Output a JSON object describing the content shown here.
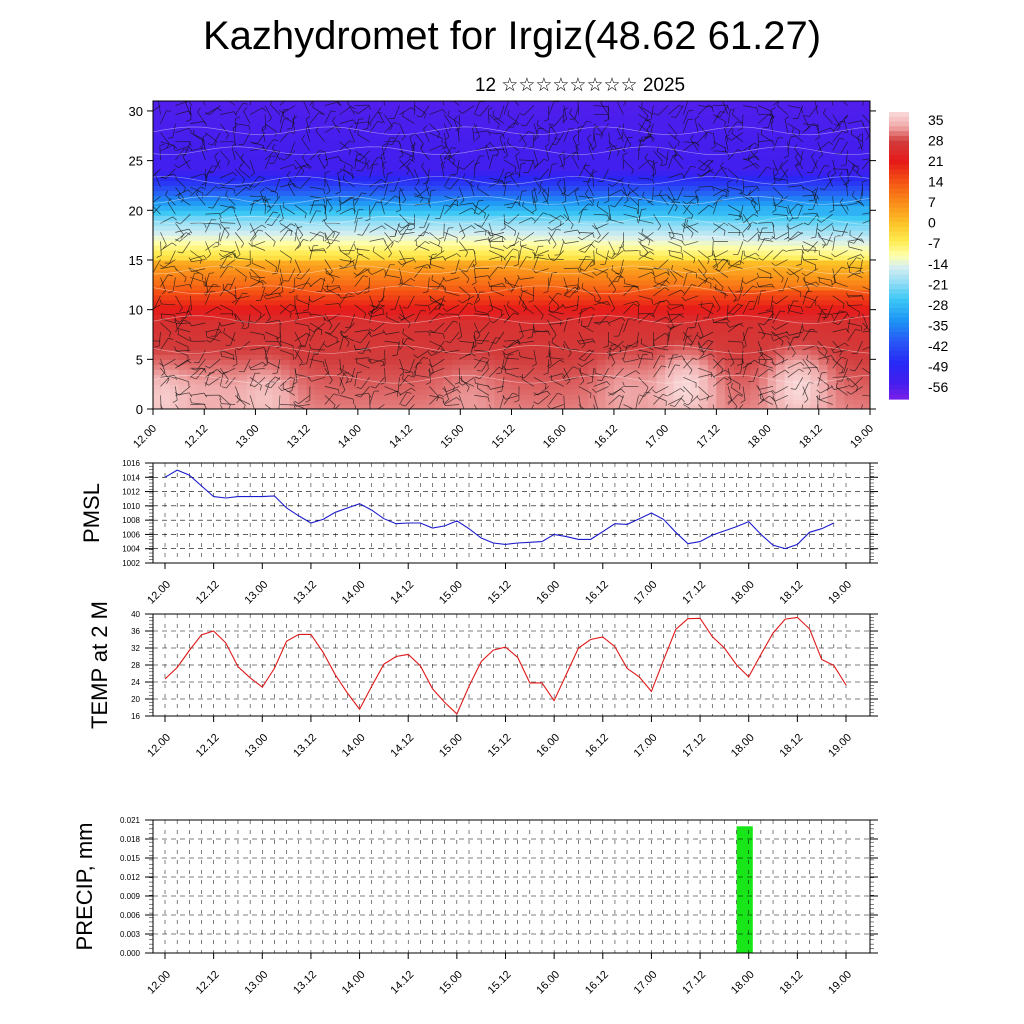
{
  "header": {
    "title": "Kazhydromet for Irgiz(48.62 61.27)",
    "subtitle": "12 ☆☆☆☆☆☆☆☆ 2025"
  },
  "colors": {
    "pmsl_line": "#1c1ccc",
    "temp_line": "#e01818",
    "precip_bar": "#19e619",
    "frame": "#000000",
    "grid": "#000000"
  },
  "chart_data": [
    {
      "type": "heatmap",
      "title": "",
      "xlabel": "",
      "ylabel": "",
      "x_ticks": [
        "12.00",
        "12.12",
        "13.00",
        "13.12",
        "14.00",
        "14.12",
        "15.00",
        "15.12",
        "16.00",
        "16.12",
        "17.00",
        "17.12",
        "18.00",
        "18.12",
        "19.00"
      ],
      "y_ticks": [
        0,
        5,
        10,
        15,
        20,
        25,
        30
      ],
      "ylim": [
        0,
        31
      ],
      "colorbar_labels": [
        "35",
        "28",
        "21",
        "14",
        "7",
        "0",
        "-7",
        "-14",
        "-21",
        "-28",
        "-35",
        "-42",
        "-49",
        "-56"
      ],
      "colorbar_range": [
        -60,
        38
      ],
      "field": "temperature profile with wind barbs",
      "warm_cores": [
        {
          "x": 12.1,
          "y": 1.5,
          "value": 36
        },
        {
          "x": 12.6,
          "y": 2.0,
          "value": 33
        },
        {
          "x": 13.1,
          "y": 1.5,
          "value": 35
        },
        {
          "x": 15.1,
          "y": 2.0,
          "value": 32
        },
        {
          "x": 16.6,
          "y": 2.5,
          "value": 33
        },
        {
          "x": 17.2,
          "y": 2.5,
          "value": 38
        },
        {
          "x": 18.3,
          "y": 2.5,
          "value": 38
        }
      ]
    },
    {
      "type": "line",
      "ylabel": "PMSL",
      "x_ticks": [
        "12.00",
        "12.12",
        "13.00",
        "13.12",
        "14.00",
        "14.12",
        "15.00",
        "15.12",
        "16.00",
        "16.12",
        "17.00",
        "17.12",
        "18.00",
        "18.12",
        "19.00"
      ],
      "y_ticks": [
        "1016",
        "1014",
        "1012",
        "1010",
        "1008",
        "1006",
        "1004",
        "1002"
      ],
      "ylim": [
        1002,
        1016
      ],
      "x": [
        0,
        1.5,
        3,
        4.5,
        6,
        7.5,
        9,
        10.5,
        12,
        13.5,
        15,
        16.5,
        18,
        19.5,
        21,
        22.5,
        24,
        25.5,
        27,
        28.5,
        30,
        31.5,
        33,
        34.5,
        36,
        37.5,
        39,
        40.5,
        42,
        43.5,
        45,
        46.5,
        48,
        49.5,
        51,
        52.5,
        54,
        55.5,
        57,
        58.5,
        60,
        61.5,
        63,
        64.5,
        66,
        67.5,
        69,
        70.5,
        72,
        73.5,
        75,
        76.5,
        78,
        79.5,
        81,
        82.5,
        84,
        85.5,
        87,
        88.5,
        90,
        91.5,
        93,
        94.5,
        96,
        97.5,
        99,
        100.5,
        102,
        103.5,
        105,
        106.5,
        108,
        109.5,
        111,
        112.5,
        114,
        115.5,
        117,
        118.5,
        120,
        121.5,
        123,
        124.5,
        126,
        127.5,
        129,
        130.5,
        132,
        133.5,
        135,
        136.5,
        138,
        139.5,
        141,
        142.5,
        144,
        145.5,
        147,
        148.5,
        150,
        151.5,
        153,
        154.5,
        156,
        157.5,
        159,
        160.5,
        162,
        163.5,
        165
      ],
      "x_note": "",
      "series": [
        {
          "name": "",
          "points": [
            [
              0,
              1014
            ],
            [
              3,
              1015
            ],
            [
              6,
              1014.3
            ],
            [
              12,
              1011.3
            ],
            [
              15,
              1011.1
            ],
            [
              18,
              1011.3
            ],
            [
              24,
              1011.3
            ],
            [
              27,
              1011.4
            ],
            [
              30,
              1009.7
            ],
            [
              33,
              1008.6
            ],
            [
              36,
              1007.6
            ],
            [
              39,
              1008.1
            ],
            [
              42,
              1009.1
            ],
            [
              45,
              1009.7
            ],
            [
              48,
              1010.3
            ],
            [
              51,
              1009.4
            ],
            [
              54,
              1008.2
            ],
            [
              57,
              1007.5
            ],
            [
              60,
              1007.6
            ],
            [
              63,
              1007.6
            ],
            [
              66,
              1006.9
            ],
            [
              69,
              1007.2
            ],
            [
              72,
              1007.9
            ],
            [
              75,
              1006.8
            ],
            [
              78,
              1005.5
            ],
            [
              81,
              1004.8
            ],
            [
              84,
              1004.6
            ],
            [
              87,
              1004.8
            ],
            [
              90,
              1004.9
            ],
            [
              93,
              1005
            ],
            [
              96,
              1006
            ],
            [
              99,
              1005.7
            ],
            [
              102,
              1005.3
            ],
            [
              105,
              1005.3
            ],
            [
              108,
              1006.4
            ],
            [
              111,
              1007.5
            ],
            [
              114,
              1007.4
            ],
            [
              117,
              1008.2
            ],
            [
              120,
              1009
            ],
            [
              123,
              1008.1
            ],
            [
              126,
              1006.3
            ],
            [
              129,
              1004.7
            ],
            [
              132,
              1005
            ],
            [
              135,
              1005.9
            ],
            [
              138,
              1006.5
            ],
            [
              141,
              1007.1
            ],
            [
              144,
              1007.8
            ],
            [
              147,
              1006
            ],
            [
              150,
              1004.5
            ],
            [
              153,
              1004
            ],
            [
              156,
              1004.6
            ],
            [
              159,
              1006.3
            ],
            [
              162,
              1006.8
            ],
            [
              165,
              1007.6
            ]
          ]
        }
      ]
    },
    {
      "type": "line",
      "ylabel": "TEMP at 2 M",
      "x_ticks": [
        "12.00",
        "12.12",
        "13.00",
        "13.12",
        "14.00",
        "14.12",
        "15.00",
        "15.12",
        "16.00",
        "16.12",
        "17.00",
        "17.12",
        "18.00",
        "18.12",
        "19.00"
      ],
      "y_ticks": [
        "40",
        "36",
        "32",
        "28",
        "24",
        "20",
        "16"
      ],
      "ylim": [
        16,
        40
      ],
      "series": [
        {
          "name": "",
          "points": [
            [
              0,
              24.7
            ],
            [
              3,
              27.4
            ],
            [
              6,
              31.4
            ],
            [
              9,
              35.1
            ],
            [
              12,
              36
            ],
            [
              15,
              33.2
            ],
            [
              18,
              27.6
            ],
            [
              21,
              25
            ],
            [
              24,
              22.8
            ],
            [
              27,
              27.2
            ],
            [
              30,
              33.6
            ],
            [
              33,
              35.2
            ],
            [
              36,
              35.2
            ],
            [
              39,
              31
            ],
            [
              42,
              25.7
            ],
            [
              45,
              21.4
            ],
            [
              48,
              17.6
            ],
            [
              51,
              23
            ],
            [
              54,
              28.2
            ],
            [
              57,
              30
            ],
            [
              60,
              30.5
            ],
            [
              63,
              27.8
            ],
            [
              66,
              22.4
            ],
            [
              69,
              19.2
            ],
            [
              72,
              16.5
            ],
            [
              75,
              23
            ],
            [
              78,
              28.8
            ],
            [
              81,
              31.5
            ],
            [
              84,
              32.2
            ],
            [
              87,
              29.8
            ],
            [
              90,
              23.8
            ],
            [
              93,
              23.8
            ],
            [
              96,
              19.6
            ],
            [
              99,
              25.8
            ],
            [
              102,
              32
            ],
            [
              105,
              34
            ],
            [
              108,
              34.6
            ],
            [
              111,
              32.3
            ],
            [
              114,
              27.2
            ],
            [
              117,
              25.2
            ],
            [
              120,
              21.8
            ],
            [
              123,
              29.2
            ],
            [
              126,
              36.4
            ],
            [
              129,
              38.9
            ],
            [
              132,
              39
            ],
            [
              135,
              34.7
            ],
            [
              138,
              32
            ],
            [
              141,
              28
            ],
            [
              144,
              25.2
            ],
            [
              147,
              30.5
            ],
            [
              150,
              35.5
            ],
            [
              153,
              38.8
            ],
            [
              156,
              39.2
            ],
            [
              159,
              36.5
            ],
            [
              162,
              29.3
            ],
            [
              165,
              27.9
            ],
            [
              168,
              23.3
            ]
          ]
        }
      ]
    },
    {
      "type": "bar",
      "ylabel": "PRECIP, mm",
      "x_ticks": [
        "12.00",
        "12.12",
        "13.00",
        "13.12",
        "14.00",
        "14.12",
        "15.00",
        "15.12",
        "16.00",
        "16.12",
        "17.00",
        "17.12",
        "18.00",
        "18.12",
        "19.00"
      ],
      "y_ticks": [
        "0.021",
        "0.018",
        "0.015",
        "0.012",
        "0.009",
        "0.006",
        "0.003",
        "0.000"
      ],
      "ylim": [
        0,
        0.021
      ],
      "bars": [
        {
          "x_start": 141,
          "x_end": 144,
          "value": 0.02
        }
      ]
    }
  ]
}
